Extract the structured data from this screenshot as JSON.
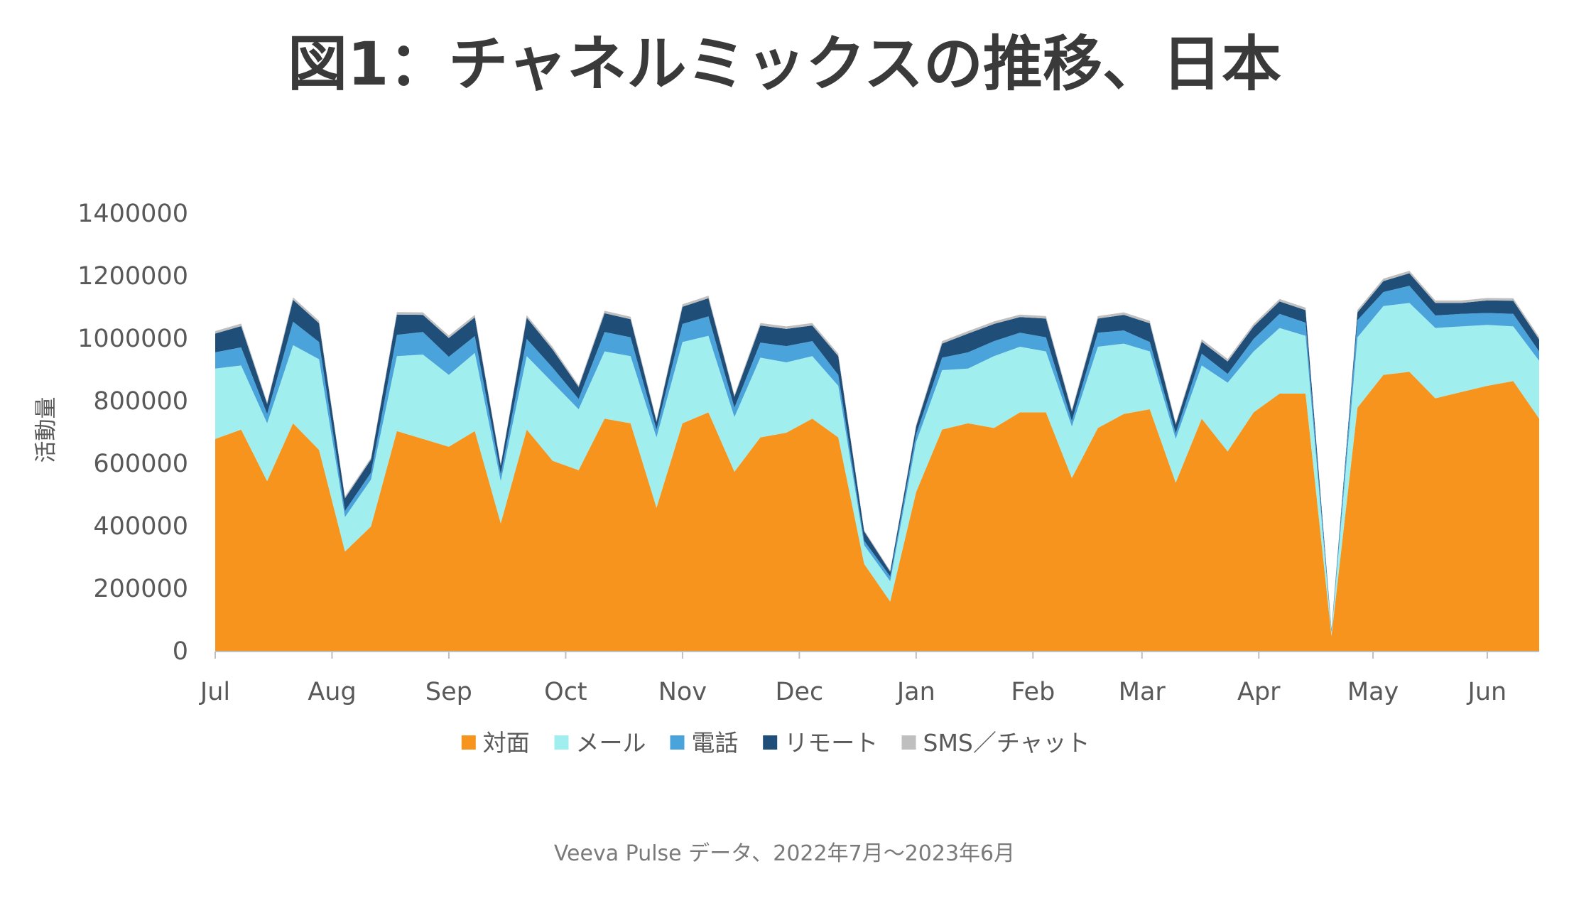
{
  "chart_data": {
    "type": "area",
    "stacked": true,
    "title": "図1：チャネルミックスの推移、日本",
    "ylabel": "活動量",
    "xlabel": "",
    "ylim": [
      0,
      1400000
    ],
    "yticks": [
      0,
      200000,
      400000,
      600000,
      800000,
      1000000,
      1200000,
      1400000
    ],
    "ytick_labels": [
      "0",
      "200000",
      "400000",
      "600000",
      "800000",
      "1000000",
      "1200000",
      "1400000"
    ],
    "x_month_labels": [
      "Jul",
      "Aug",
      "Sep",
      "Oct",
      "Nov",
      "Dec",
      "Jan",
      "Feb",
      "Mar",
      "Apr",
      "May",
      "Jun"
    ],
    "x_month_start_week": [
      0,
      4.5,
      9,
      13.5,
      18,
      22.5,
      27,
      31.5,
      35.7,
      40.2,
      44.6,
      49
    ],
    "n_weeks": 53,
    "legend_position": "bottom",
    "grid": false,
    "series": [
      {
        "name": "対面",
        "color": "#f7941d",
        "values": [
          680000,
          710000,
          545000,
          730000,
          645000,
          320000,
          400000,
          705000,
          680000,
          655000,
          705000,
          410000,
          710000,
          610000,
          580000,
          745000,
          730000,
          460000,
          730000,
          765000,
          575000,
          685000,
          700000,
          745000,
          685000,
          280000,
          160000,
          510000,
          710000,
          730000,
          715000,
          765000,
          765000,
          555000,
          715000,
          760000,
          775000,
          540000,
          745000,
          640000,
          765000,
          825000,
          825000,
          50000,
          780000,
          885000,
          895000,
          810000,
          830000,
          850000,
          865000,
          745000
        ]
      },
      {
        "name": "メール",
        "color": "#a0eeee",
        "values": [
          225000,
          205000,
          185000,
          250000,
          290000,
          110000,
          150000,
          240000,
          270000,
          230000,
          250000,
          135000,
          235000,
          250000,
          195000,
          215000,
          215000,
          225000,
          260000,
          245000,
          175000,
          255000,
          225000,
          200000,
          165000,
          60000,
          65000,
          160000,
          190000,
          175000,
          230000,
          210000,
          195000,
          165000,
          260000,
          225000,
          185000,
          140000,
          170000,
          220000,
          195000,
          210000,
          185000,
          10000,
          225000,
          220000,
          220000,
          225000,
          210000,
          195000,
          175000,
          185000
        ]
      },
      {
        "name": "電話",
        "color": "#4aa3da",
        "values": [
          52000,
          58000,
          30000,
          75000,
          55000,
          20000,
          22000,
          68000,
          72000,
          58000,
          54000,
          22000,
          55000,
          48000,
          33000,
          62000,
          60000,
          25000,
          58000,
          62000,
          30000,
          48000,
          52000,
          48000,
          35000,
          14000,
          15000,
          25000,
          40000,
          52000,
          48000,
          45000,
          45000,
          18000,
          45000,
          42000,
          30000,
          18000,
          38000,
          28000,
          40000,
          45000,
          42000,
          5000,
          55000,
          45000,
          55000,
          40000,
          40000,
          38000,
          40000,
          30000
        ]
      },
      {
        "name": "リモート",
        "color": "#1f4e79",
        "values": [
          60000,
          68000,
          32000,
          70000,
          60000,
          40000,
          42000,
          65000,
          55000,
          60000,
          60000,
          28000,
          68000,
          58000,
          38000,
          60000,
          58000,
          25000,
          55000,
          58000,
          35000,
          55000,
          55000,
          50000,
          60000,
          30000,
          15000,
          25000,
          45000,
          60000,
          55000,
          50000,
          60000,
          30000,
          45000,
          50000,
          60000,
          28000,
          38000,
          40000,
          40000,
          40000,
          40000,
          5000,
          25000,
          35000,
          40000,
          40000,
          35000,
          40000,
          42000,
          38000
        ]
      },
      {
        "name": "SMS／チャット",
        "color": "#bfbfbf",
        "values": [
          8000,
          8000,
          6000,
          8000,
          8000,
          6000,
          6000,
          8000,
          8000,
          8000,
          8000,
          6000,
          8000,
          8000,
          6000,
          8000,
          8000,
          6000,
          8000,
          8000,
          6000,
          8000,
          8000,
          8000,
          8000,
          4000,
          4000,
          6000,
          8000,
          8000,
          8000,
          8000,
          8000,
          6000,
          8000,
          8000,
          8000,
          6000,
          8000,
          8000,
          8000,
          8000,
          8000,
          2000,
          8000,
          8000,
          8000,
          8000,
          8000,
          8000,
          8000,
          8000
        ]
      }
    ]
  },
  "footer": "Veeva Pulse データ、2022年7月～2023年6月"
}
